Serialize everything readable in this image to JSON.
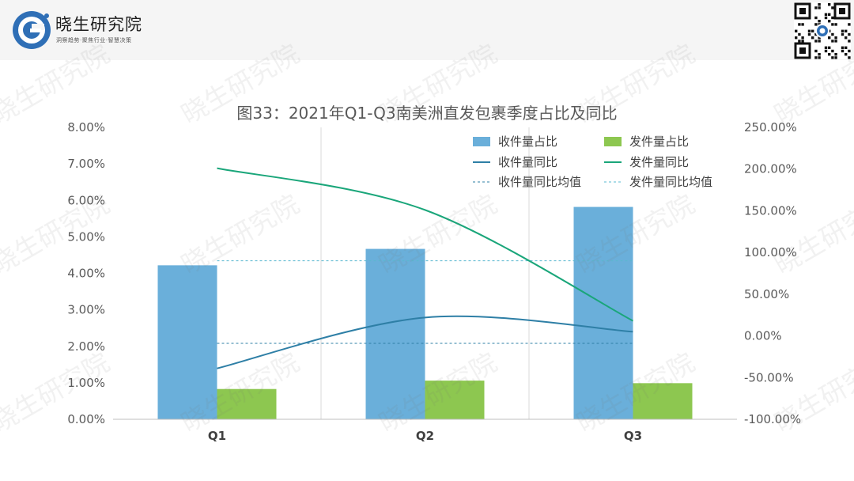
{
  "header": {
    "brand_name": "晓生研究院",
    "brand_tagline": "洞察趋势·聚焦行业·智慧决策",
    "logo_icon": "g-logo-icon",
    "qr_icon": "qr-code-icon",
    "watermark_text": "晓生研究院"
  },
  "chart_data": {
    "type": "bar",
    "title": "图33：2021年Q1-Q3南美洲直发包裹季度占比及同比",
    "categories": [
      "Q1",
      "Q2",
      "Q3"
    ],
    "y_left": {
      "range": [
        0,
        0.08
      ],
      "ticks": [
        "0.00%",
        "1.00%",
        "2.00%",
        "3.00%",
        "4.00%",
        "5.00%",
        "6.00%",
        "7.00%",
        "8.00%"
      ]
    },
    "y_right": {
      "range": [
        -1.0,
        2.5
      ],
      "ticks": [
        "-100.00%",
        "-50.00%",
        "0.00%",
        "50.00%",
        "100.00%",
        "150.00%",
        "200.00%",
        "250.00%"
      ]
    },
    "series": [
      {
        "name": "收件量占比",
        "type": "bar",
        "axis": "left",
        "color": "#6aafda",
        "values": [
          0.0422,
          0.0467,
          0.0582
        ]
      },
      {
        "name": "发件量占比",
        "type": "bar",
        "axis": "left",
        "color": "#8dc750",
        "values": [
          0.0083,
          0.0106,
          0.0099
        ]
      },
      {
        "name": "收件量同比",
        "type": "line",
        "axis": "right",
        "color": "#2e7fa6",
        "values": [
          -0.39,
          0.22,
          0.05
        ]
      },
      {
        "name": "发件量同比",
        "type": "line",
        "axis": "right",
        "color": "#1aa67a",
        "values": [
          2.01,
          1.51,
          0.18
        ]
      },
      {
        "name": "收件量同比均值",
        "type": "dashed",
        "axis": "right",
        "color": "#2e7fa6",
        "value": -0.09
      },
      {
        "name": "发件量同比均值",
        "type": "dashed",
        "axis": "right",
        "color": "#5ab8d0",
        "value": 0.9
      }
    ],
    "grid": "vertical-category-separators",
    "legend": "top-right"
  }
}
